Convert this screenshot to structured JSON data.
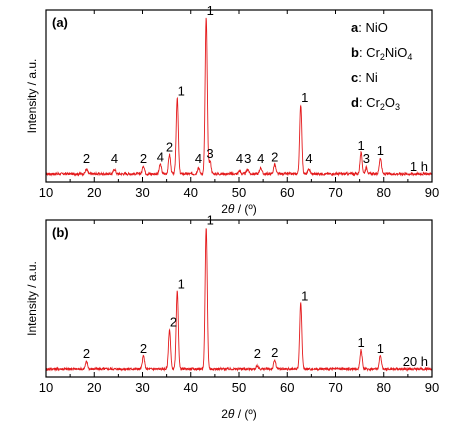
{
  "chart_data": [
    {
      "type": "line",
      "panel_label": "(a)",
      "condition_label": "1 h",
      "xlabel": "2θ / (º)",
      "ylabel": "Intensity / a.u.",
      "xlim": [
        10,
        90
      ],
      "ylim": [
        0,
        100
      ],
      "x_ticks": [
        10,
        20,
        30,
        40,
        50,
        60,
        70,
        80,
        90
      ],
      "line_color": "#e41a1c",
      "legend": [
        {
          "key": "a",
          "sep": ": ",
          "text": "NiO",
          "sub": "",
          "tail": ""
        },
        {
          "key": "b",
          "sep": ": ",
          "text": "Cr",
          "sub": "2",
          "tail": "NiO",
          "sub2": "4"
        },
        {
          "key": "c",
          "sep": ": ",
          "text": "Ni",
          "sub": "",
          "tail": ""
        },
        {
          "key": "d",
          "sep": ": ",
          "text": "Cr",
          "sub": "2",
          "tail": "O",
          "sub2": "3"
        }
      ],
      "peaks": [
        {
          "x": 18.4,
          "intensity": 3,
          "label": "2"
        },
        {
          "x": 24.2,
          "intensity": 3,
          "label": "4"
        },
        {
          "x": 30.2,
          "intensity": 5,
          "label": "2"
        },
        {
          "x": 33.7,
          "intensity": 6,
          "label": "4"
        },
        {
          "x": 35.6,
          "intensity": 12,
          "label": "2"
        },
        {
          "x": 37.2,
          "intensity": 47,
          "label": "1"
        },
        {
          "x": 41.6,
          "intensity": 4,
          "label": "4"
        },
        {
          "x": 43.2,
          "intensity": 97,
          "label": "1"
        },
        {
          "x": 44.0,
          "intensity": 8,
          "label": "3"
        },
        {
          "x": 50.1,
          "intensity": 2,
          "label": "4"
        },
        {
          "x": 51.8,
          "intensity": 3,
          "label": "3"
        },
        {
          "x": 54.5,
          "intensity": 4,
          "label": "4"
        },
        {
          "x": 57.4,
          "intensity": 6,
          "label": "2"
        },
        {
          "x": 62.8,
          "intensity": 43,
          "label": "1"
        },
        {
          "x": 64.5,
          "intensity": 3,
          "label": "4"
        },
        {
          "x": 75.3,
          "intensity": 13,
          "label": "1"
        },
        {
          "x": 76.4,
          "intensity": 4,
          "label": "3"
        },
        {
          "x": 79.3,
          "intensity": 10,
          "label": "1"
        }
      ]
    },
    {
      "type": "line",
      "panel_label": "(b)",
      "condition_label": "20 h",
      "xlabel": "2θ / (º)",
      "ylabel": "Intensity / a.u.",
      "xlim": [
        10,
        90
      ],
      "ylim": [
        0,
        100
      ],
      "x_ticks": [
        10,
        20,
        30,
        40,
        50,
        60,
        70,
        80,
        90
      ],
      "line_color": "#e41a1c",
      "peaks": [
        {
          "x": 18.4,
          "intensity": 5,
          "label": "2"
        },
        {
          "x": 30.2,
          "intensity": 9,
          "label": "2"
        },
        {
          "x": 35.6,
          "intensity": 27,
          "label": "2"
        },
        {
          "x": 37.2,
          "intensity": 53,
          "label": "1"
        },
        {
          "x": 43.2,
          "intensity": 97,
          "label": "1"
        },
        {
          "x": 53.8,
          "intensity": 2,
          "label": "2"
        },
        {
          "x": 57.4,
          "intensity": 6,
          "label": "2"
        },
        {
          "x": 62.8,
          "intensity": 45,
          "label": "1"
        },
        {
          "x": 75.3,
          "intensity": 13,
          "label": "1"
        },
        {
          "x": 79.3,
          "intensity": 9,
          "label": "1"
        }
      ]
    }
  ]
}
